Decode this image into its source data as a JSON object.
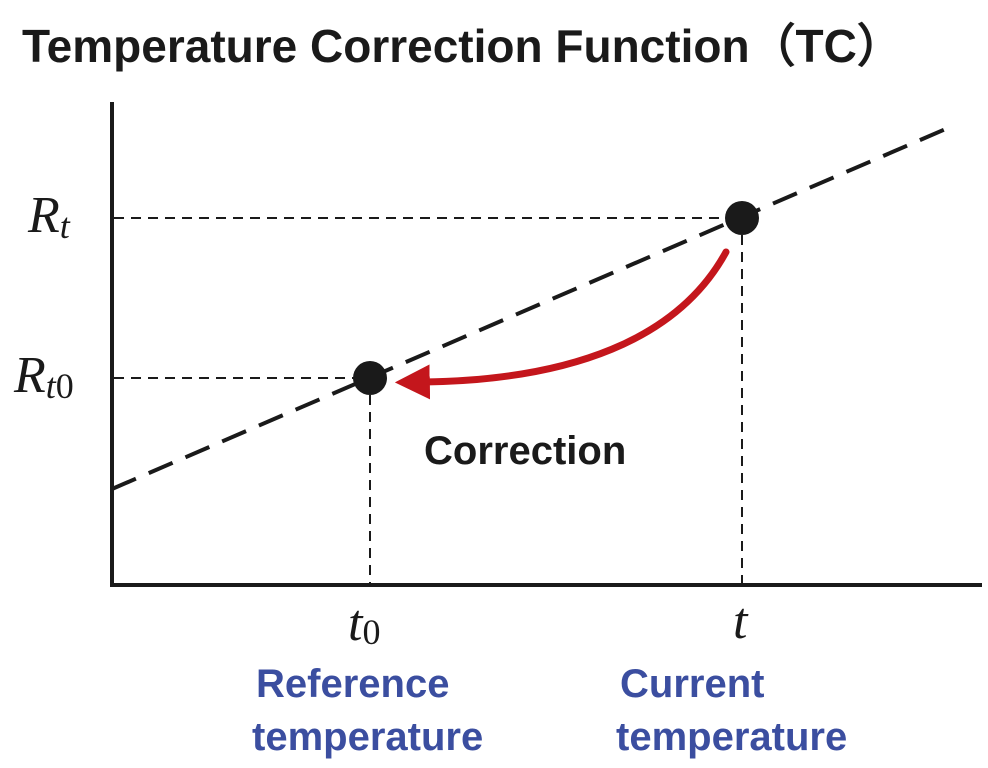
{
  "title": "Temperature Correction Function（TC）",
  "y_axis": {
    "rt_label": "R",
    "rt_subscript": "t",
    "rt0_label": "R",
    "rt0_subscript_italic": "t",
    "rt0_subscript_digit": "0"
  },
  "x_axis": {
    "t0_label": "t",
    "t0_subscript": "0",
    "t_label": "t"
  },
  "captions": {
    "reference_line1": "Reference",
    "reference_line2": "temperature",
    "current_line1": "Current",
    "current_line2": "temperature"
  },
  "arrow_label": "Correction",
  "colors": {
    "ink": "#1a1a1a",
    "arrow": "#c4161c",
    "caption": "#3b4ea0"
  }
}
